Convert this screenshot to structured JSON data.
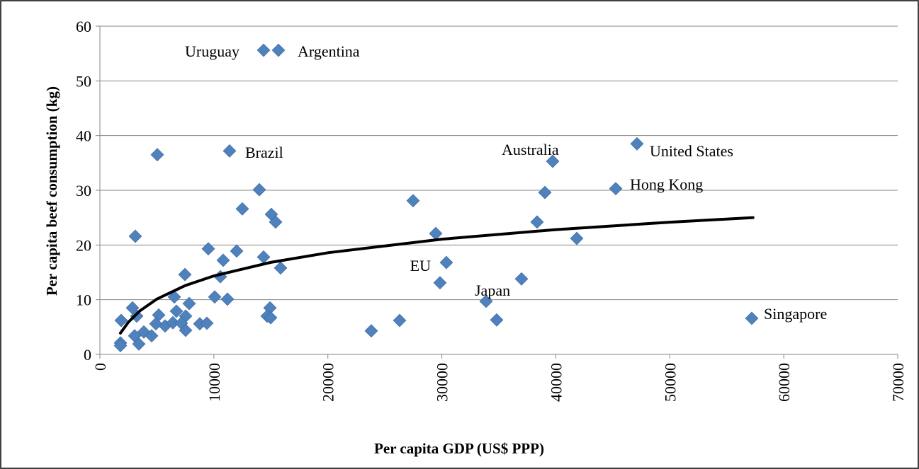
{
  "chart_data": {
    "type": "scatter",
    "x_label": "Per capita GDP (US$ PPP)",
    "y_label": "Per capita beef consumption (kg)",
    "xlim": [
      0,
      70000
    ],
    "xticks": [
      0,
      10000,
      20000,
      30000,
      40000,
      50000,
      60000,
      70000
    ],
    "ylim": [
      0,
      60
    ],
    "yticks": [
      0,
      10,
      20,
      30,
      40,
      50,
      60
    ],
    "grid": true,
    "series": [
      {
        "color": "#4f81bd",
        "x": [
          14360,
          15666,
          5035,
          11376,
          13987,
          12495,
          15044,
          15417,
          3108,
          9511,
          11998,
          10817,
          14360,
          15852,
          7460,
          10568,
          10071,
          11190,
          6527,
          7833,
          2860,
          14920,
          3233,
          5160,
          6714,
          7522,
          1865,
          4911,
          5719,
          6403,
          7149,
          8765,
          9387,
          14671,
          14982,
          7522,
          3854,
          3046,
          4538,
          3419,
          1803,
          1803,
          23809,
          26296,
          27477,
          29466,
          30399,
          29839,
          33880,
          34813,
          36989,
          38357,
          39041,
          39725,
          41838,
          45257,
          47122,
          57193
        ],
        "values": [
          55.6,
          55.6,
          36.5,
          37.2,
          30.1,
          26.6,
          25.6,
          24.2,
          21.6,
          19.3,
          18.9,
          17.2,
          17.8,
          15.8,
          14.6,
          14.2,
          10.5,
          10.1,
          10.5,
          9.3,
          8.5,
          8.5,
          7.0,
          7.2,
          7.9,
          7.0,
          6.2,
          5.6,
          5.2,
          5.8,
          5.7,
          5.6,
          5.7,
          7.0,
          6.7,
          4.4,
          4.1,
          3.4,
          3.4,
          1.9,
          2.1,
          1.6,
          4.3,
          6.2,
          28.1,
          22.1,
          16.8,
          13.1,
          9.7,
          6.3,
          13.8,
          24.2,
          29.6,
          35.3,
          21.2,
          30.3,
          38.5,
          6.6
        ]
      }
    ],
    "trendline": {
      "color": "#000000",
      "x": [
        1800,
        2500,
        3500,
        5000,
        7500,
        10000,
        15000,
        20000,
        30000,
        40000,
        50000,
        57300
      ],
      "values": [
        3.89,
        5.9,
        7.95,
        10.12,
        12.6,
        14.35,
        16.83,
        18.58,
        21.06,
        22.81,
        24.17,
        25.0
      ]
    },
    "annotations": [
      "Uruguay",
      "Argentina",
      "Brazil",
      "Australia",
      "United States",
      "Hong Kong",
      "EU",
      "Japan",
      "Singapore"
    ]
  }
}
